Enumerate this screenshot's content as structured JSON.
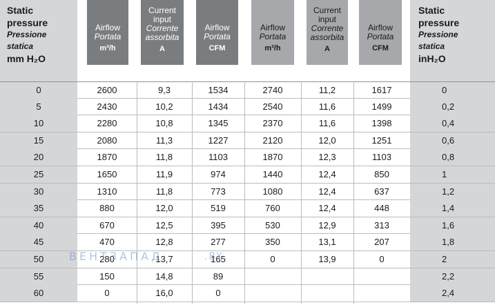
{
  "left_header": {
    "line1": "Static",
    "line2": "pressure",
    "line3": "Pressione",
    "line4": "statica",
    "unit": "mm H₂O"
  },
  "right_header": {
    "line1": "Static",
    "line2": "pressure",
    "line3": "Pressione",
    "line4": "statica",
    "unit": "inH₂O"
  },
  "columns": [
    {
      "l1": "Airflow",
      "l2": "",
      "it1": "Portata",
      "it2": "",
      "unit": "m³/h"
    },
    {
      "l1": "Current",
      "l2": "input",
      "it1": "Corrente",
      "it2": "assorbita",
      "unit": "A"
    },
    {
      "l1": "Airflow",
      "l2": "",
      "it1": "Portata",
      "it2": "",
      "unit": "CFM"
    },
    {
      "l1": "Airflow",
      "l2": "",
      "it1": "Portata",
      "it2": "",
      "unit": "m³/h"
    },
    {
      "l1": "Current",
      "l2": "input",
      "it1": "Corrente",
      "it2": "assorbita",
      "unit": "A"
    },
    {
      "l1": "Airflow",
      "l2": "",
      "it1": "Portata",
      "it2": "",
      "unit": "CFM"
    }
  ],
  "rows": [
    [
      "0",
      "2600",
      "9,3",
      "1534",
      "2740",
      "11,2",
      "1617",
      "0"
    ],
    [
      "5",
      "2430",
      "10,2",
      "1434",
      "2540",
      "11,6",
      "1499",
      "0,2"
    ],
    [
      "10",
      "2280",
      "10,8",
      "1345",
      "2370",
      "11,6",
      "1398",
      "0,4"
    ],
    [
      "15",
      "2080",
      "11,3",
      "1227",
      "2120",
      "12,0",
      "1251",
      "0,6"
    ],
    [
      "20",
      "1870",
      "11,8",
      "1103",
      "1870",
      "12,3",
      "1103",
      "0,8"
    ],
    [
      "25",
      "1650",
      "11,9",
      "974",
      "1440",
      "12,4",
      "850",
      "1"
    ],
    [
      "30",
      "1310",
      "11,8",
      "773",
      "1080",
      "12,4",
      "637",
      "1,2"
    ],
    [
      "35",
      "880",
      "12,0",
      "519",
      "760",
      "12,4",
      "448",
      "1,4"
    ],
    [
      "40",
      "670",
      "12,5",
      "395",
      "530",
      "12,9",
      "313",
      "1,6"
    ],
    [
      "45",
      "470",
      "12,8",
      "277",
      "350",
      "13,1",
      "207",
      "1,8"
    ],
    [
      "50",
      "280",
      "13,7",
      "165",
      "0",
      "13,9",
      "0",
      "2"
    ],
    [
      "55",
      "150",
      "14,8",
      "89",
      "",
      "",
      "",
      "2,2"
    ],
    [
      "60",
      "0",
      "16,0",
      "0",
      "",
      "",
      "",
      "2,4"
    ]
  ],
  "watermark": {
    "text1": "ВЕНТЗАПАД",
    "text2": ".BY"
  },
  "colors": {
    "header_dark": "#7a7d80",
    "header_light": "#a6a8ab",
    "side_shade": "#d5d6d8",
    "rule": "#b9bbbe"
  }
}
